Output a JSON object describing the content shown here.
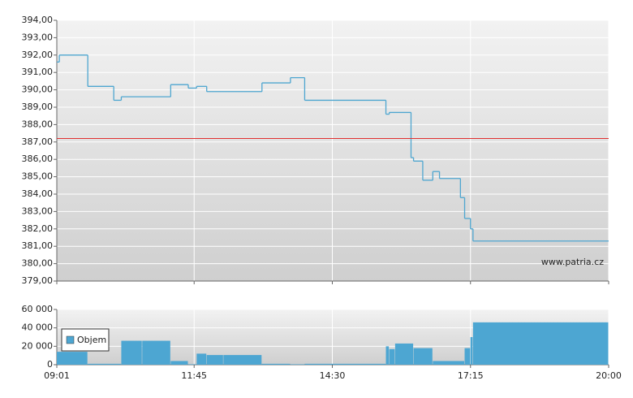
{
  "chart_data": [
    {
      "type": "line",
      "step": true,
      "grid": true,
      "annotation": "www.patria.cz",
      "x": [
        "09:01",
        "09:04",
        "09:38",
        "10:09",
        "10:18",
        "11:17",
        "11:38",
        "11:48",
        "12:00",
        "13:06",
        "13:40",
        "13:57",
        "15:34",
        "15:38",
        "16:04",
        "16:07",
        "16:18",
        "16:30",
        "16:38",
        "17:03",
        "17:08",
        "17:15",
        "17:18"
      ],
      "values": [
        391.6,
        392.0,
        390.2,
        389.4,
        389.6,
        390.3,
        390.1,
        390.2,
        389.9,
        390.4,
        390.7,
        389.4,
        388.6,
        388.7,
        386.1,
        385.9,
        384.8,
        385.3,
        384.9,
        383.8,
        382.6,
        382.0,
        381.3
      ],
      "color": "#4ea6d0",
      "reference_line": {
        "value": 387.2,
        "color": "#e03030"
      },
      "xlim": [
        "09:01",
        "20:00"
      ],
      "ylim": [
        379,
        394
      ],
      "yticks": [
        {
          "value": 379,
          "label": "379,00"
        },
        {
          "value": 380,
          "label": "380,00"
        },
        {
          "value": 381,
          "label": "381,00"
        },
        {
          "value": 382,
          "label": "382,00"
        },
        {
          "value": 383,
          "label": "383,00"
        },
        {
          "value": 384,
          "label": "384,00"
        },
        {
          "value": 385,
          "label": "385,00"
        },
        {
          "value": 386,
          "label": "386,00"
        },
        {
          "value": 387,
          "label": "387,00"
        },
        {
          "value": 388,
          "label": "388,00"
        },
        {
          "value": 389,
          "label": "389,00"
        },
        {
          "value": 390,
          "label": "390,00"
        },
        {
          "value": 391,
          "label": "391,00"
        },
        {
          "value": 392,
          "label": "392,00"
        },
        {
          "value": 393,
          "label": "393,00"
        },
        {
          "value": 394,
          "label": "394,00"
        }
      ]
    },
    {
      "type": "bar",
      "grid": true,
      "x": [
        "09:01",
        "09:38",
        "10:18",
        "10:43",
        "11:17",
        "11:38",
        "11:48",
        "12:00",
        "12:20",
        "13:06",
        "13:40",
        "13:57",
        "15:34",
        "15:38",
        "15:45",
        "16:07",
        "16:30",
        "17:08",
        "17:15",
        "17:18"
      ],
      "series": [
        {
          "name": "Objem",
          "color": "#4da6d2",
          "values": [
            14000,
            1000,
            26000,
            26000,
            4000,
            500,
            12000,
            10500,
            10500,
            1000,
            500,
            1000,
            20000,
            17000,
            23000,
            18000,
            4000,
            18000,
            30000,
            46000
          ]
        }
      ],
      "xlim": [
        "09:01",
        "20:00"
      ],
      "xticks": [
        "09:01",
        "11:45",
        "14:30",
        "17:15",
        "20:00"
      ],
      "ylim": [
        0,
        60000
      ],
      "yticks": [
        0,
        {
          "value": 20000,
          "label": "20 000"
        },
        {
          "value": 40000,
          "label": "40 000"
        },
        {
          "value": 60000,
          "label": "60 000"
        }
      ]
    }
  ]
}
